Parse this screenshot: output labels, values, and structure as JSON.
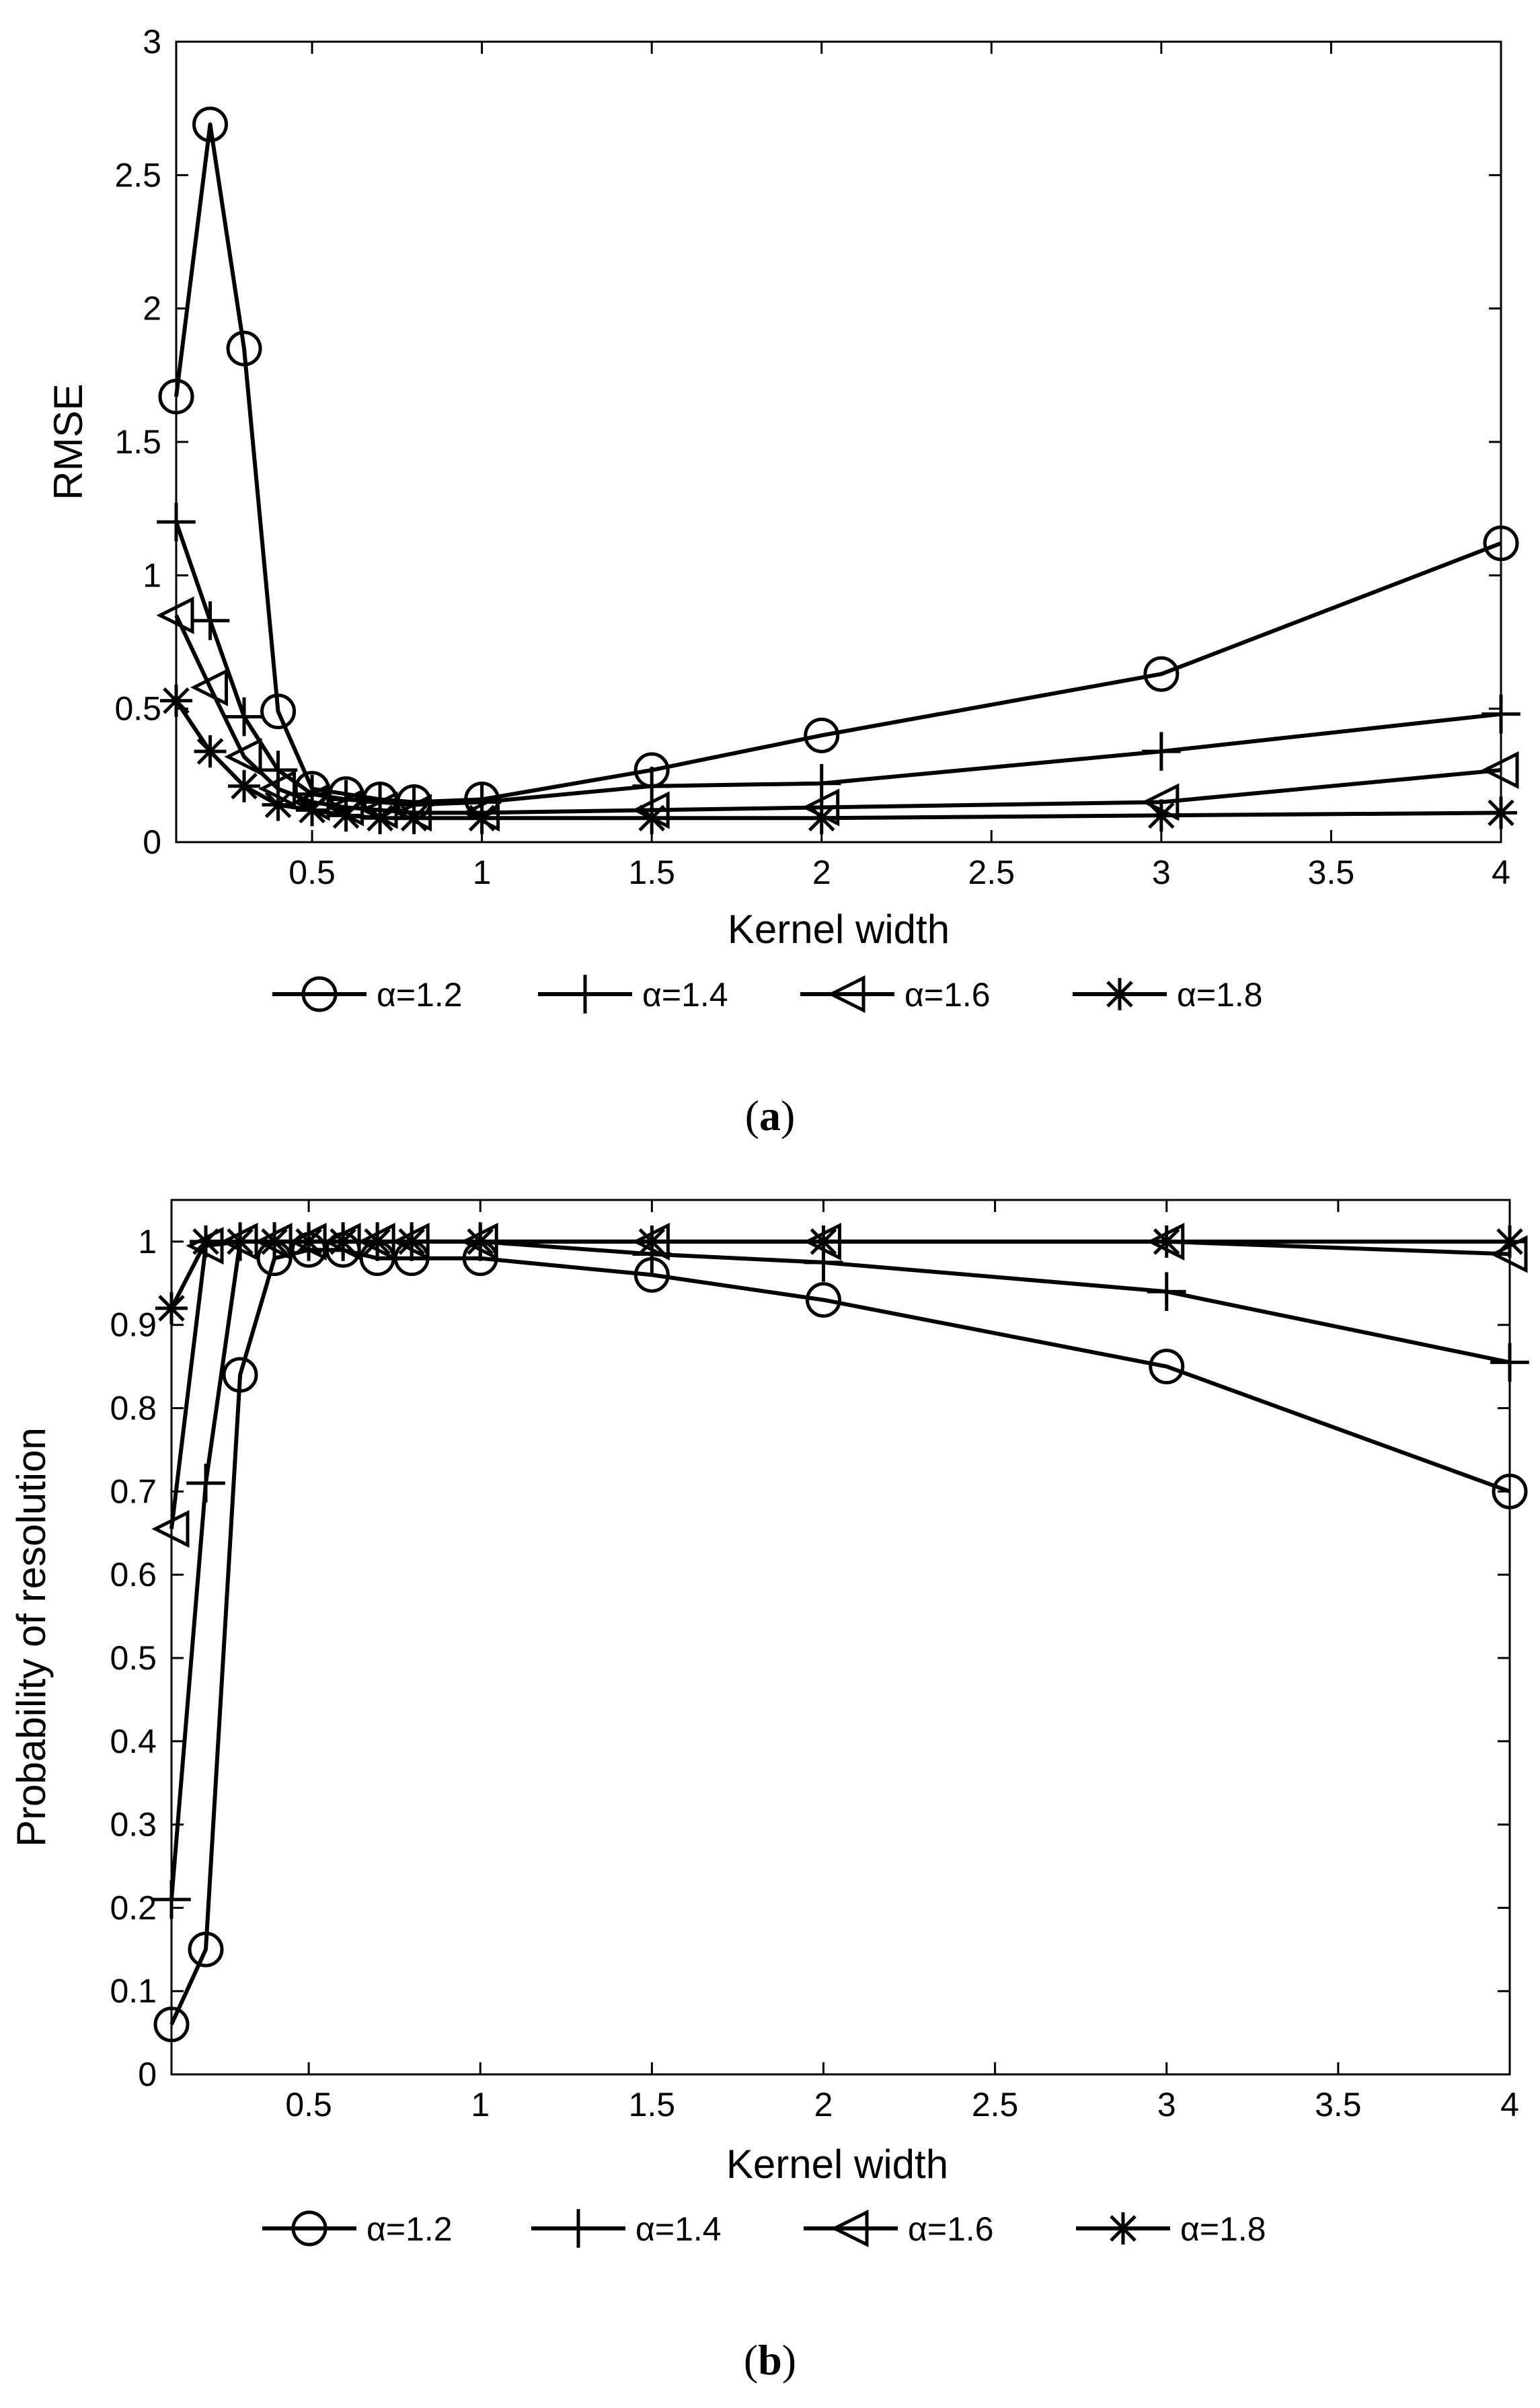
{
  "chart_data": [
    {
      "type": "line",
      "caption_open": "(",
      "caption_letter": "a",
      "caption_close": ")",
      "title": "",
      "xlabel": "Kernel width",
      "ylabel": "RMSE",
      "xlim": [
        0.1,
        4
      ],
      "ylim": [
        0,
        3
      ],
      "xticks": [
        0.5,
        1,
        1.5,
        2,
        2.5,
        3,
        3.5,
        4
      ],
      "xtick_labels": [
        "0.5",
        "1",
        "1.5",
        "2",
        "2.5",
        "3",
        "3.5",
        "4"
      ],
      "yticks": [
        0,
        0.5,
        1,
        1.5,
        2,
        2.5,
        3
      ],
      "ytick_labels": [
        "0",
        "0.5",
        "1",
        "1.5",
        "2",
        "2.5",
        "3"
      ],
      "grid": false,
      "legend_position": "bottom-center",
      "x": [
        0.1,
        0.2,
        0.3,
        0.4,
        0.5,
        0.6,
        0.7,
        0.8,
        1,
        1.5,
        2,
        3,
        4
      ],
      "series": [
        {
          "name": "α=1.2",
          "marker": "circle",
          "values": [
            1.67,
            2.69,
            1.85,
            0.49,
            0.2,
            0.18,
            0.16,
            0.15,
            0.16,
            0.27,
            0.4,
            0.63,
            1.12
          ]
        },
        {
          "name": "α=1.4",
          "marker": "plus",
          "values": [
            1.2,
            0.83,
            0.47,
            0.27,
            0.18,
            0.16,
            0.15,
            0.14,
            0.15,
            0.21,
            0.22,
            0.34,
            0.48
          ]
        },
        {
          "name": "α=1.6",
          "marker": "triangle-left",
          "values": [
            0.85,
            0.58,
            0.32,
            0.2,
            0.15,
            0.13,
            0.12,
            0.11,
            0.11,
            0.12,
            0.13,
            0.15,
            0.27
          ]
        },
        {
          "name": "α=1.8",
          "marker": "asterisk",
          "values": [
            0.53,
            0.34,
            0.21,
            0.14,
            0.12,
            0.1,
            0.09,
            0.09,
            0.09,
            0.09,
            0.09,
            0.1,
            0.11
          ]
        }
      ]
    },
    {
      "type": "line",
      "caption_open": "(",
      "caption_letter": "b",
      "caption_close": ")",
      "title": "",
      "xlabel": "Kernel width",
      "ylabel": "Probability of resolution",
      "xlim": [
        0.1,
        4
      ],
      "ylim": [
        0,
        1.05
      ],
      "xticks": [
        0.5,
        1,
        1.5,
        2,
        2.5,
        3,
        3.5,
        4
      ],
      "xtick_labels": [
        "0.5",
        "1",
        "1.5",
        "2",
        "2.5",
        "3",
        "3.5",
        "4"
      ],
      "yticks": [
        0,
        0.1,
        0.2,
        0.3,
        0.4,
        0.5,
        0.6,
        0.7,
        0.8,
        0.9,
        1
      ],
      "ytick_labels": [
        "0",
        "0.1",
        "0.2",
        "0.3",
        "0.4",
        "0.5",
        "0.6",
        "0.7",
        "0.8",
        "0.9",
        "1"
      ],
      "grid": false,
      "legend_position": "bottom-center",
      "x": [
        0.1,
        0.2,
        0.3,
        0.4,
        0.5,
        0.6,
        0.7,
        0.8,
        1,
        1.5,
        2,
        3,
        4
      ],
      "series": [
        {
          "name": "α=1.2",
          "marker": "circle",
          "values": [
            0.06,
            0.15,
            0.84,
            0.98,
            0.99,
            0.99,
            0.98,
            0.98,
            0.98,
            0.96,
            0.93,
            0.85,
            0.7
          ]
        },
        {
          "name": "α=1.4",
          "marker": "plus",
          "values": [
            0.21,
            0.71,
            1.0,
            1.0,
            1.0,
            1.0,
            1.0,
            1.0,
            1.0,
            0.985,
            0.975,
            0.94,
            0.855
          ]
        },
        {
          "name": "α=1.6",
          "marker": "triangle-left",
          "values": [
            0.655,
            0.995,
            1.0,
            1.0,
            1.0,
            1.0,
            1.0,
            1.0,
            1.0,
            1.0,
            1.0,
            1.0,
            0.985
          ]
        },
        {
          "name": "α=1.8",
          "marker": "asterisk",
          "values": [
            0.92,
            1.0,
            1.0,
            1.0,
            1.0,
            1.0,
            1.0,
            1.0,
            1.0,
            1.0,
            1.0,
            1.0,
            1.0
          ]
        }
      ]
    }
  ]
}
